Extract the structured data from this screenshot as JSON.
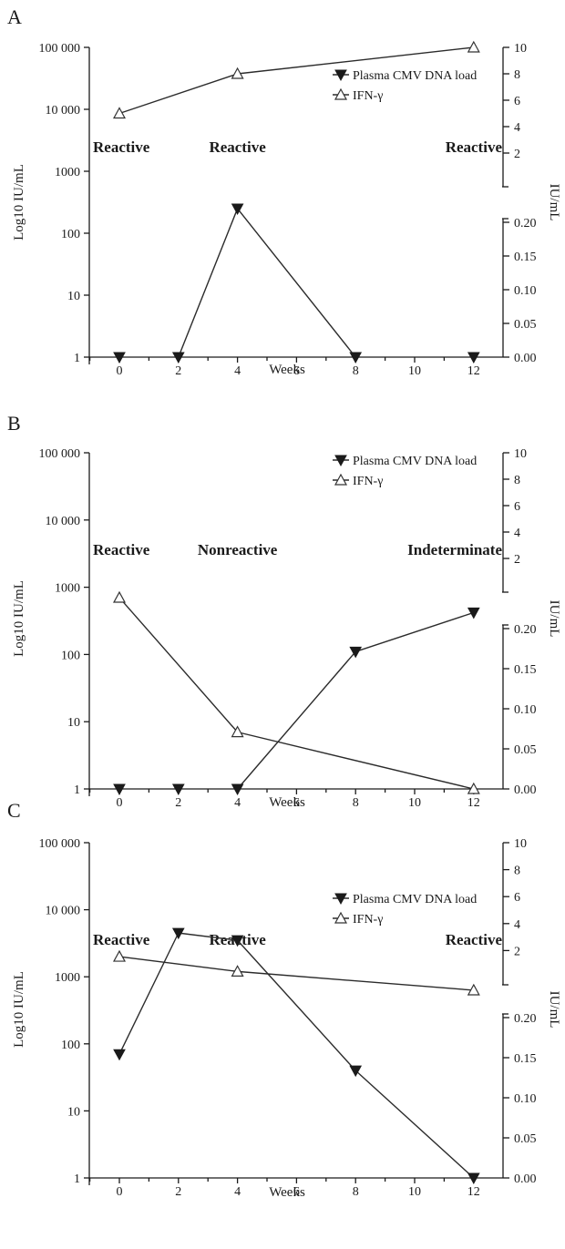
{
  "chart_data": [
    {
      "type": "line",
      "panel_label": "A",
      "xlabel": "Weeks",
      "ylabel_left": "Log10 IU/mL",
      "ylabel_right": "IU/mL",
      "x_ticks": [
        0,
        2,
        4,
        6,
        8,
        10,
        12
      ],
      "xlim": [
        -1,
        13
      ],
      "left_axis": {
        "scale": "log",
        "range": [
          1,
          100000
        ],
        "tick_labels": [
          "1",
          "10",
          "100",
          "1000",
          "10 000",
          "100 000"
        ]
      },
      "right_axis_upper": {
        "range": [
          0,
          10
        ],
        "ticks": [
          2,
          4,
          6,
          8,
          10
        ],
        "tick_labels": [
          "2",
          "4",
          "6",
          "8",
          "10"
        ]
      },
      "right_axis_lower": {
        "range": [
          0,
          0.2
        ],
        "ticks": [
          0,
          0.05,
          0.1,
          0.15,
          0.2
        ],
        "tick_labels": [
          "0.00",
          "0.05",
          "0.10",
          "0.15",
          "0.20"
        ]
      },
      "legend": {
        "placement": "top-right",
        "entries": [
          "Plasma CMV DNA load",
          "IFN-γ"
        ]
      },
      "annotations": [
        {
          "text": "Reactive",
          "x": 0
        },
        {
          "text": "Reactive",
          "x": 4
        },
        {
          "text": "Reactive",
          "x": 12
        }
      ],
      "series": [
        {
          "name": "Plasma CMV DNA load",
          "marker": "filled-down-triangle",
          "axis": "left-log",
          "points": [
            [
              0,
              1
            ],
            [
              2,
              1
            ],
            [
              4,
              250
            ],
            [
              8,
              1
            ],
            [
              12,
              1
            ]
          ],
          "segments": [
            [
              2,
              4
            ],
            [
              4,
              8
            ]
          ]
        },
        {
          "name": "IFN-γ",
          "marker": "open-up-triangle",
          "axis": "right-upper",
          "points": [
            [
              0,
              5.0
            ],
            [
              4,
              8.0
            ],
            [
              12,
              10.0
            ]
          ],
          "segments": [
            [
              0,
              4
            ],
            [
              4,
              12
            ]
          ]
        }
      ]
    },
    {
      "type": "line",
      "panel_label": "B",
      "xlabel": "Weeks",
      "ylabel_left": "Log10 IU/mL",
      "ylabel_right": "IU/mL",
      "x_ticks": [
        0,
        2,
        4,
        6,
        8,
        10,
        12
      ],
      "xlim": [
        -1,
        13
      ],
      "left_axis": {
        "scale": "log",
        "range": [
          1,
          100000
        ],
        "tick_labels": [
          "1",
          "10",
          "100",
          "1000",
          "10 000",
          "100 000"
        ]
      },
      "right_axis_upper": {
        "range": [
          0,
          10
        ],
        "ticks": [
          2,
          4,
          6,
          8,
          10
        ],
        "tick_labels": [
          "2",
          "4",
          "6",
          "8",
          "10"
        ]
      },
      "right_axis_lower": {
        "range": [
          0,
          0.2
        ],
        "ticks": [
          0,
          0.05,
          0.1,
          0.15,
          0.2
        ],
        "tick_labels": [
          "0.00",
          "0.05",
          "0.10",
          "0.15",
          "0.20"
        ]
      },
      "legend": {
        "placement": "top-right",
        "entries": [
          "Plasma CMV DNA load",
          "IFN-γ"
        ]
      },
      "annotations": [
        {
          "text": "Reactive",
          "x": 0
        },
        {
          "text": "Nonreactive",
          "x": 4
        },
        {
          "text": "Indeterminate",
          "x": 12
        }
      ],
      "series": [
        {
          "name": "Plasma CMV DNA load",
          "marker": "filled-down-triangle",
          "axis": "left-log",
          "points": [
            [
              0,
              1
            ],
            [
              2,
              1
            ],
            [
              4,
              1
            ],
            [
              8,
              110
            ],
            [
              12,
              420
            ]
          ],
          "segments": [
            [
              4,
              8
            ],
            [
              8,
              12
            ]
          ]
        },
        {
          "name": "IFN-γ",
          "marker": "open-up-triangle",
          "axis": "left-log",
          "points": [
            [
              0,
              700
            ],
            [
              4,
              7
            ],
            [
              12,
              1
            ]
          ],
          "segments": [
            [
              0,
              4
            ],
            [
              4,
              12
            ]
          ]
        }
      ]
    },
    {
      "type": "line",
      "panel_label": "C",
      "xlabel": "Weeks",
      "ylabel_left": "Log10 IU/mL",
      "ylabel_right": "IU/mL",
      "x_ticks": [
        0,
        2,
        4,
        6,
        8,
        10,
        12
      ],
      "xlim": [
        -1,
        13
      ],
      "left_axis": {
        "scale": "log",
        "range": [
          1,
          100000
        ],
        "tick_labels": [
          "1",
          "10",
          "100",
          "1000",
          "10 000",
          "100 000"
        ]
      },
      "right_axis_upper": {
        "range": [
          0,
          10
        ],
        "ticks": [
          2,
          4,
          6,
          8,
          10
        ],
        "tick_labels": [
          "2",
          "4",
          "6",
          "8",
          "10"
        ]
      },
      "right_axis_lower": {
        "range": [
          0,
          0.2
        ],
        "ticks": [
          0,
          0.05,
          0.1,
          0.15,
          0.2
        ],
        "tick_labels": [
          "0.00",
          "0.05",
          "0.10",
          "0.15",
          "0.20"
        ]
      },
      "legend": {
        "placement": "top-right",
        "entries": [
          "Plasma CMV DNA load",
          "IFN-γ"
        ]
      },
      "annotations": [
        {
          "text": "Reactive",
          "x": 0
        },
        {
          "text": "Reactive",
          "x": 4
        },
        {
          "text": "Reactive",
          "x": 12
        }
      ],
      "series": [
        {
          "name": "Plasma CMV DNA load",
          "marker": "filled-down-triangle",
          "axis": "left-log",
          "points": [
            [
              0,
              70
            ],
            [
              2,
              4500
            ],
            [
              4,
              3500
            ],
            [
              8,
              40
            ],
            [
              12,
              1
            ]
          ],
          "segments": [
            [
              0,
              2
            ],
            [
              2,
              4
            ],
            [
              4,
              8
            ],
            [
              8,
              12
            ]
          ]
        },
        {
          "name": "IFN-γ",
          "marker": "open-up-triangle",
          "axis": "left-log",
          "points": [
            [
              0,
              2000
            ],
            [
              4,
              1200
            ],
            [
              12,
              630
            ]
          ],
          "segments": [
            [
              0,
              4
            ],
            [
              4,
              12
            ]
          ]
        }
      ]
    }
  ]
}
